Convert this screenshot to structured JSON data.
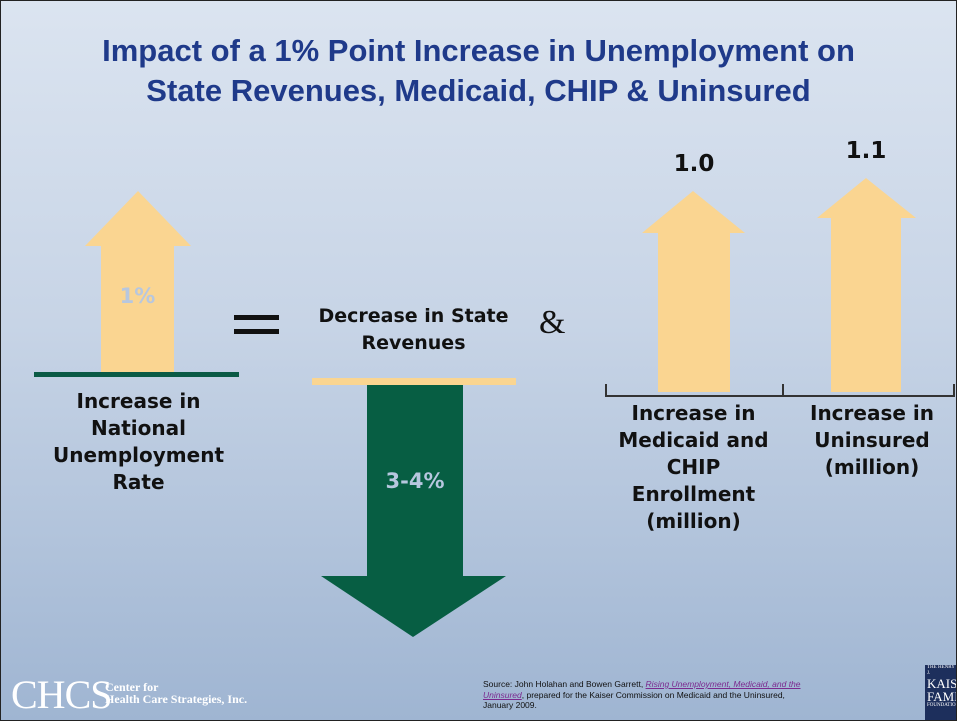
{
  "title": {
    "line1": "Impact of a 1% Point Increase in Unemployment on",
    "line2": "State Revenues, Medicaid, CHIP & Uninsured"
  },
  "left_block": {
    "arrow_value": "1%",
    "label_lines": [
      "Increase in",
      "National",
      "Unemployment",
      "Rate"
    ]
  },
  "operators": {
    "equals": "=",
    "and": "&"
  },
  "middle_block": {
    "heading_lines": [
      "Decrease in State",
      "Revenues"
    ],
    "arrow_value": "3-4%"
  },
  "right_block": {
    "medicaid": {
      "value": "1.0",
      "label_lines": [
        "Increase in",
        "Medicaid and",
        "CHIP",
        "Enrollment",
        "(million)"
      ]
    },
    "uninsured": {
      "value": "1.1",
      "label_lines": [
        "Increase in",
        "Uninsured",
        "(million)"
      ]
    }
  },
  "source": {
    "prefix": "Source: John Holahan and Bowen Garrett, ",
    "title": "Rising Unemployment, Medicaid, and the Uninsured",
    "suffix": ", prepared for the Kaiser Commission on Medicaid and the Uninsured, January 2009."
  },
  "logos": {
    "chcs": {
      "abbrev": "CHCS",
      "line1": "Center for",
      "line2": "Health Care Strategies, Inc."
    },
    "kff": {
      "small_top": "THE HENRY J.",
      "line1": "KAISER",
      "line2": "FAMILY",
      "small_bottom": "FOUNDATION"
    }
  },
  "colors": {
    "title": "#1f3a8a",
    "up_arrow": "#fad591",
    "down_arrow": "#075e43",
    "baseline_dark": "#0a5a45",
    "baseline_light": "#fad591",
    "arrow_text_light": "#b7c7df"
  }
}
